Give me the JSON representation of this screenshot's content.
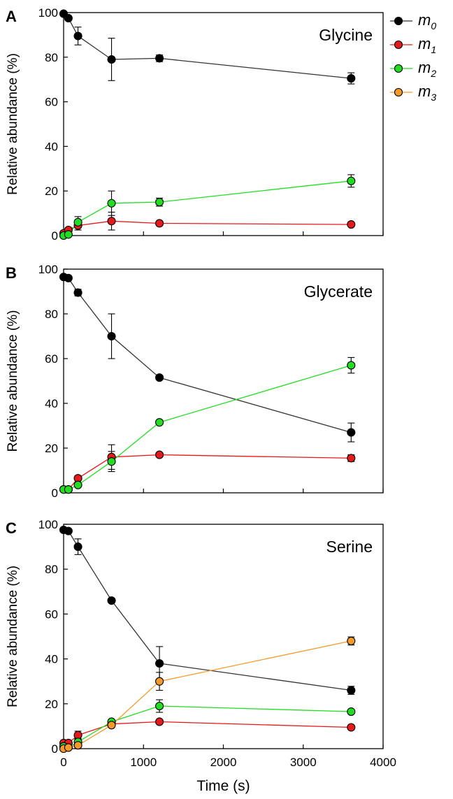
{
  "chart_data": {
    "type": "line",
    "x_label": "Time (s)",
    "y_label": "Relative abundance (%)",
    "x_ticks": [
      0,
      1000,
      2000,
      3000,
      4000
    ],
    "y_ticks": [
      0,
      20,
      40,
      60,
      80,
      100
    ],
    "xlim": [
      0,
      4000
    ],
    "ylim": [
      0,
      100
    ],
    "error_bars": true,
    "legend": {
      "placement": "top-right, outside panel A",
      "entries": [
        {
          "key": "m0",
          "base": "m",
          "sub": "0",
          "color": "#000000"
        },
        {
          "key": "m1",
          "base": "m",
          "sub": "1",
          "color": "#e41a1c"
        },
        {
          "key": "m2",
          "base": "m",
          "sub": "2",
          "color": "#22dd22"
        },
        {
          "key": "m3",
          "base": "m",
          "sub": "3",
          "color": "#f39a2a"
        }
      ]
    },
    "panels": [
      {
        "letter": "A",
        "title": "Glycine",
        "series": [
          {
            "key": "m0",
            "points": [
              [
                0,
                99.5,
                0
              ],
              [
                60,
                97.5,
                0
              ],
              [
                180,
                89.5,
                4
              ],
              [
                600,
                79,
                9.5
              ],
              [
                1200,
                79.5,
                1.5
              ],
              [
                3600,
                70.5,
                2.5
              ]
            ]
          },
          {
            "key": "m1",
            "points": [
              [
                0,
                1,
                0
              ],
              [
                60,
                2.5,
                0
              ],
              [
                180,
                4.5,
                2
              ],
              [
                600,
                6.5,
                4
              ],
              [
                1200,
                5.5,
                0
              ],
              [
                3600,
                5,
                0
              ]
            ]
          },
          {
            "key": "m2",
            "points": [
              [
                0,
                0,
                0
              ],
              [
                60,
                0.5,
                0
              ],
              [
                180,
                6,
                2.5
              ],
              [
                600,
                14.5,
                5.5
              ],
              [
                1200,
                15,
                1.8
              ],
              [
                3600,
                24.5,
                2.8
              ]
            ]
          }
        ]
      },
      {
        "letter": "B",
        "title": "Glycerate",
        "series": [
          {
            "key": "m0",
            "points": [
              [
                0,
                96.5,
                0
              ],
              [
                60,
                96,
                0
              ],
              [
                180,
                89.5,
                1.5
              ],
              [
                600,
                70,
                10
              ],
              [
                1200,
                51.5,
                0
              ],
              [
                3600,
                27,
                4.2
              ]
            ]
          },
          {
            "key": "m1",
            "points": [
              [
                0,
                1.5,
                0
              ],
              [
                60,
                1.5,
                0
              ],
              [
                180,
                6.5,
                0
              ],
              [
                600,
                16,
                5.5
              ],
              [
                1200,
                17,
                0
              ],
              [
                3600,
                15.5,
                1.5
              ]
            ]
          },
          {
            "key": "m2",
            "points": [
              [
                0,
                1.5,
                0
              ],
              [
                60,
                1.5,
                0
              ],
              [
                180,
                3.5,
                0
              ],
              [
                600,
                14,
                4.5
              ],
              [
                1200,
                31.5,
                0
              ],
              [
                3600,
                57,
                3.5
              ]
            ]
          }
        ]
      },
      {
        "letter": "C",
        "title": "Serine",
        "series": [
          {
            "key": "m0",
            "points": [
              [
                0,
                97.5,
                0
              ],
              [
                60,
                97,
                0
              ],
              [
                180,
                90,
                3.5
              ],
              [
                600,
                66,
                0
              ],
              [
                1200,
                38,
                7.5
              ],
              [
                3600,
                26,
                1.8
              ]
            ]
          },
          {
            "key": "m1",
            "points": [
              [
                0,
                2.5,
                0
              ],
              [
                60,
                2.5,
                0
              ],
              [
                180,
                6,
                1.8
              ],
              [
                600,
                11,
                0
              ],
              [
                1200,
                12,
                0
              ],
              [
                3600,
                9.5,
                0
              ]
            ]
          },
          {
            "key": "m2",
            "points": [
              [
                0,
                1,
                0
              ],
              [
                60,
                0.5,
                0
              ],
              [
                180,
                3,
                1.5
              ],
              [
                600,
                12,
                0
              ],
              [
                1200,
                19,
                2.8
              ],
              [
                3600,
                16.5,
                0
              ]
            ]
          },
          {
            "key": "m3",
            "points": [
              [
                0,
                0,
                0
              ],
              [
                60,
                0.5,
                0
              ],
              [
                180,
                1.5,
                0
              ],
              [
                600,
                10.5,
                0
              ],
              [
                1200,
                30,
                4
              ],
              [
                3600,
                48,
                1.8
              ]
            ]
          }
        ]
      }
    ]
  }
}
